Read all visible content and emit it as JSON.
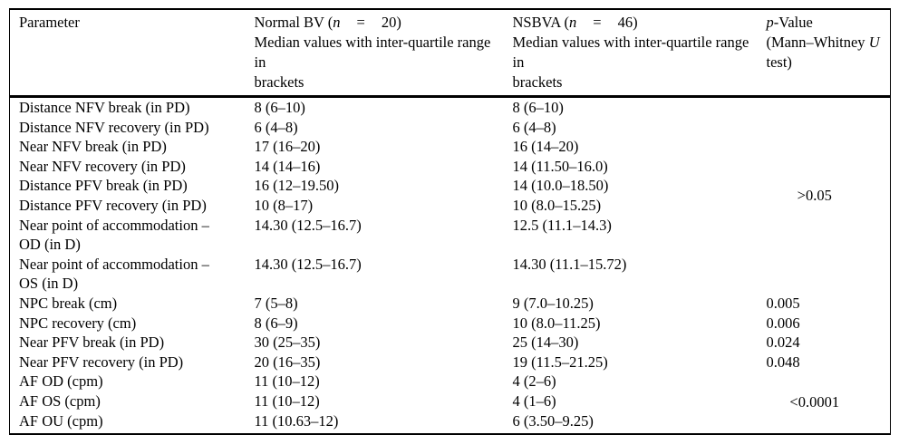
{
  "table": {
    "header": {
      "col1": "Parameter",
      "col2": {
        "pre": "Normal BV (",
        "n": "n",
        "eq": "=",
        "count": "20)",
        "line2a": "Median values with inter-quartile range in",
        "line2b": "brackets"
      },
      "col3": {
        "pre": "NSBVA (",
        "n": "n",
        "eq": "=",
        "count": "46)",
        "line2a": "Median values with inter-quartile range in",
        "line2b": "brackets"
      },
      "col4": {
        "p": "p",
        "p_rest": "-Value",
        "line2_pre": "(Mann–Whitney ",
        "u": "U",
        "line3": "test)"
      }
    },
    "rows": [
      {
        "param": "Distance NFV break (in PD)",
        "normal": "8 (6–10)",
        "nsbva": "8 (6–10)"
      },
      {
        "param": "Distance NFV recovery (in PD)",
        "normal": "6 (4–8)",
        "nsbva": "6 (4–8)"
      },
      {
        "param": "Near NFV break (in PD)",
        "normal": "17 (16–20)",
        "nsbva": "16 (14–20)"
      },
      {
        "param": "Near NFV recovery (in PD)",
        "normal": "14 (14–16)",
        "nsbva": "14 (11.50–16.0)"
      },
      {
        "param": "Distance PFV break (in PD)",
        "normal": "16 (12–19.50)",
        "nsbva": "14 (10.0–18.50)"
      },
      {
        "param": "Distance PFV recovery (in PD)",
        "normal": "10 (8–17)",
        "nsbva": "10 (8.0–15.25)"
      },
      {
        "param": "Near point of accommodation –",
        "param2": "OD (in D)",
        "normal": "14.30 (12.5–16.7)",
        "nsbva": "12.5 (11.1–14.3)"
      },
      {
        "param": "Near point of accommodation –",
        "param2": "OS (in D)",
        "normal": "14.30 (12.5–16.7)",
        "nsbva": "14.30 (11.1–15.72)"
      },
      {
        "param": "NPC break (cm)",
        "normal": "7 (5–8)",
        "nsbva": "9 (7.0–10.25)",
        "p": "0.005"
      },
      {
        "param": "NPC recovery (cm)",
        "normal": "8 (6–9)",
        "nsbva": "10 (8.0–11.25)",
        "p": "0.006"
      },
      {
        "param": "Near PFV break (in PD)",
        "normal": "30 (25–35)",
        "nsbva": "25 (14–30)",
        "p": "0.024"
      },
      {
        "param": "Near PFV recovery (in PD)",
        "normal": "20 (16–35)",
        "nsbva": "19 (11.5–21.25)",
        "p": "0.048"
      },
      {
        "param": "AF OD (cpm)",
        "normal": "11 (10–12)",
        "nsbva": "4 (2–6)"
      },
      {
        "param": "AF OS (cpm)",
        "normal": "11 (10–12)",
        "nsbva": "4 (1–6)"
      },
      {
        "param": "AF OU (cpm)",
        "normal": "11 (10.63–12)",
        "nsbva": "6 (3.50–9.25)"
      }
    ],
    "p_groups": [
      {
        "value": ">0.05",
        "span": 8
      },
      {
        "value": "<0.0001",
        "span": 3
      }
    ]
  }
}
